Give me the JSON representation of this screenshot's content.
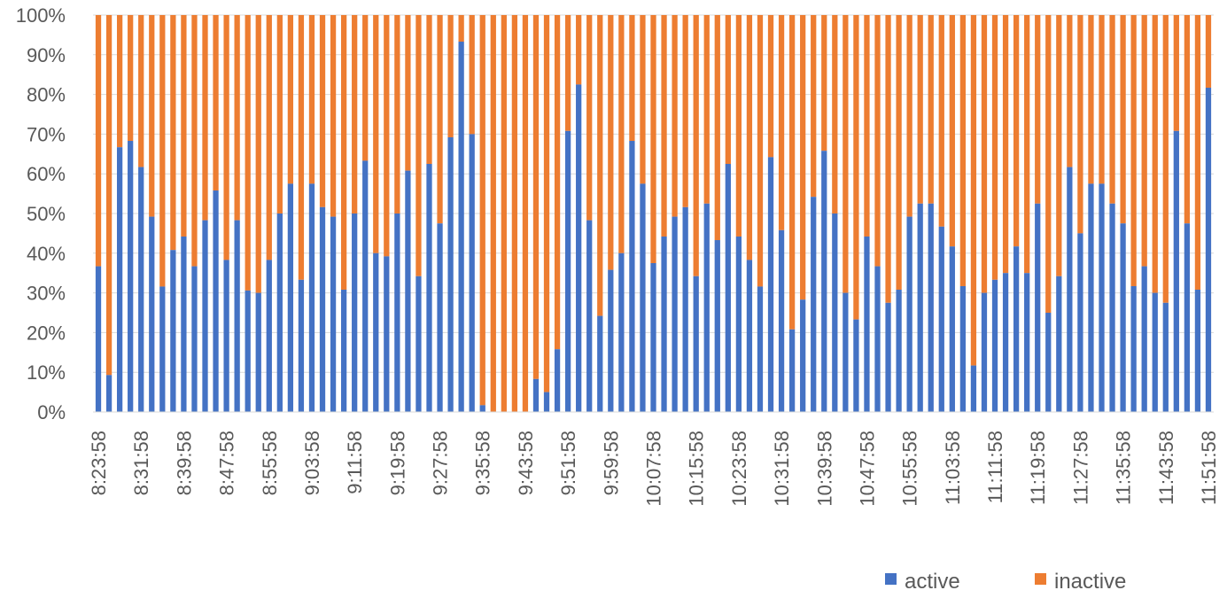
{
  "chart_data": {
    "type": "bar",
    "stacked": true,
    "percent_stacked": true,
    "ylim": [
      0,
      100
    ],
    "yticks": [
      "0%",
      "10%",
      "20%",
      "30%",
      "40%",
      "50%",
      "60%",
      "70%",
      "80%",
      "90%",
      "100%"
    ],
    "grid": true,
    "legend_position": "bottom-right",
    "x_tick_labels": [
      "8:23:58",
      "8:31:58",
      "8:39:58",
      "8:47:58",
      "8:55:58",
      "9:03:58",
      "9:11:58",
      "9:19:58",
      "9:27:58",
      "9:35:58",
      "9:43:58",
      "9:51:58",
      "9:59:58",
      "10:07:58",
      "10:15:58",
      "10:23:58",
      "10:31:58",
      "10:39:58",
      "10:47:58",
      "10:55:58",
      "11:03:58",
      "11:11:58",
      "11:19:58",
      "11:27:58",
      "11:35:58",
      "11:43:58",
      "11:51:58"
    ],
    "series": [
      {
        "name": "active",
        "color": "#4472C4",
        "values": [
          36.7,
          9.3,
          66.7,
          68.3,
          61.7,
          49.2,
          31.6,
          40.8,
          44.2,
          36.7,
          48.3,
          55.8,
          38.3,
          48.3,
          30.6,
          30.0,
          38.3,
          50.0,
          57.5,
          33.3,
          57.5,
          51.6,
          49.2,
          30.8,
          50.0,
          63.3,
          40.0,
          39.2,
          50.0,
          60.8,
          34.2,
          62.5,
          47.5,
          69.2,
          93.3,
          70.0,
          1.7,
          0,
          0,
          0,
          0,
          8.3,
          5.0,
          15.8,
          70.8,
          82.5,
          48.3,
          24.2,
          35.8,
          40.0,
          68.3,
          57.5,
          37.5,
          44.2,
          49.2,
          51.6,
          34.2,
          52.5,
          43.3,
          62.5,
          44.2,
          38.3,
          31.6,
          64.2,
          45.8,
          20.8,
          28.3,
          54.2,
          65.8,
          50.0,
          30.0,
          23.3,
          44.2,
          36.7,
          27.5,
          30.8,
          49.2,
          52.5,
          52.5,
          46.7,
          41.7,
          31.7,
          11.7,
          30.0,
          33.3,
          35.0,
          41.7,
          35.0,
          52.5,
          25.0,
          34.2,
          61.7,
          45.0,
          57.5,
          57.5,
          52.5,
          47.5,
          31.7,
          36.7,
          30.0,
          27.5,
          70.8,
          47.5,
          30.8,
          81.7
        ]
      },
      {
        "name": "inactive",
        "color": "#ED7D31",
        "values": "remainder-to-100"
      }
    ]
  },
  "legend": {
    "items": [
      {
        "label": "active",
        "color": "#4472C4"
      },
      {
        "label": "inactive",
        "color": "#ED7D31"
      }
    ]
  }
}
